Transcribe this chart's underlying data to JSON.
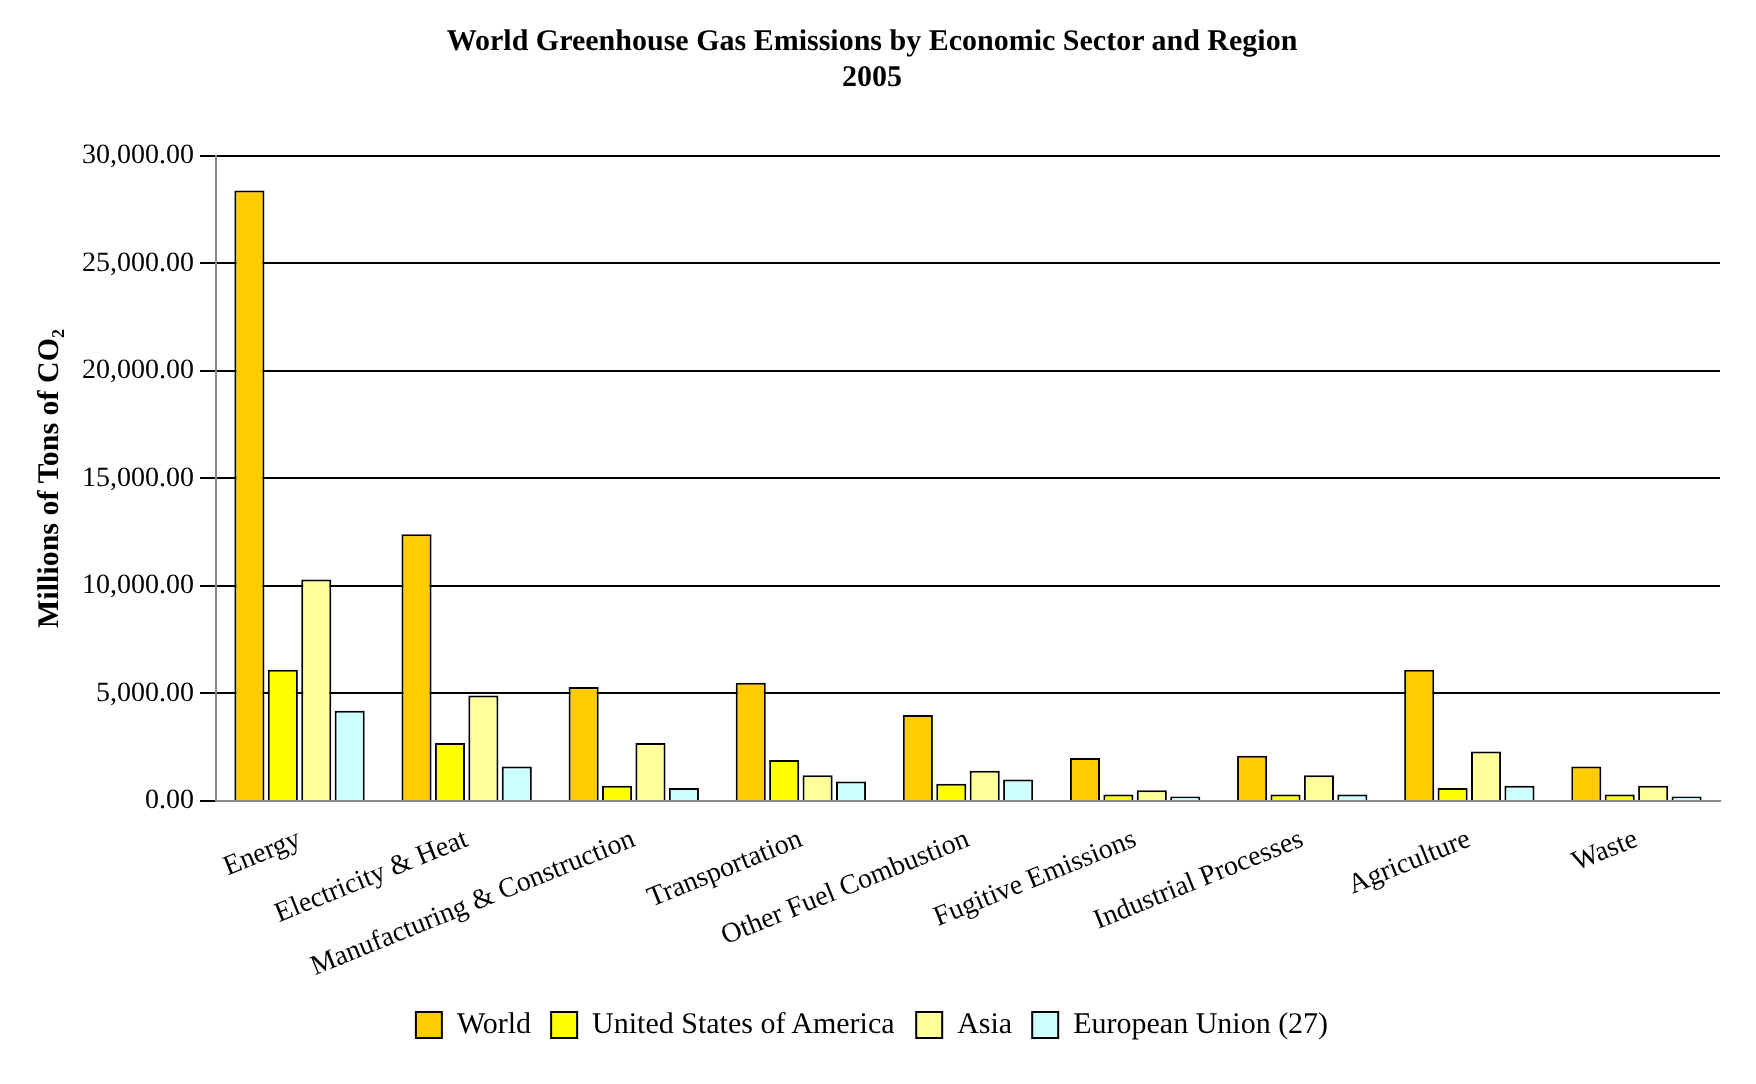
{
  "chart_data": {
    "type": "bar",
    "title": [
      "World Greenhouse Gas Emissions by Economic Sector and Region",
      "2005"
    ],
    "ylabel": "Millions of Tons of CO₂",
    "categories": [
      "Energy",
      "Electricity & Heat",
      "Manufacturing & Construction",
      "Transportation",
      "Other Fuel Combustion",
      "Fugitive Emissions",
      "Industrial Processes",
      "Agriculture",
      "Waste"
    ],
    "series": [
      {
        "name": "World",
        "color": "#ffcc00",
        "values": [
          28400,
          12400,
          5300,
          5500,
          4000,
          2000,
          2100,
          6100,
          1600
        ]
      },
      {
        "name": "United States of America",
        "color": "#ffff00",
        "values": [
          6100,
          2700,
          700,
          1900,
          800,
          300,
          300,
          600,
          300
        ]
      },
      {
        "name": "Asia",
        "color": "#ffff99",
        "values": [
          10300,
          4900,
          2700,
          1200,
          1400,
          500,
          1200,
          2300,
          700
        ]
      },
      {
        "name": "European Union (27)",
        "color": "#ccffff",
        "values": [
          4200,
          1600,
          600,
          900,
          1000,
          200,
          300,
          700,
          200
        ]
      }
    ],
    "ylim": [
      0,
      30000
    ],
    "yticks": [
      {
        "value": 0,
        "label": "0.00"
      },
      {
        "value": 5000,
        "label": "5,000.00"
      },
      {
        "value": 10000,
        "label": "10,000.00"
      },
      {
        "value": 15000,
        "label": "15,000.00"
      },
      {
        "value": 20000,
        "label": "20,000.00"
      },
      {
        "value": 25000,
        "label": "25,000.00"
      },
      {
        "value": 30000,
        "label": "30,000.00"
      }
    ],
    "grid": "y",
    "legend": "bottom"
  }
}
